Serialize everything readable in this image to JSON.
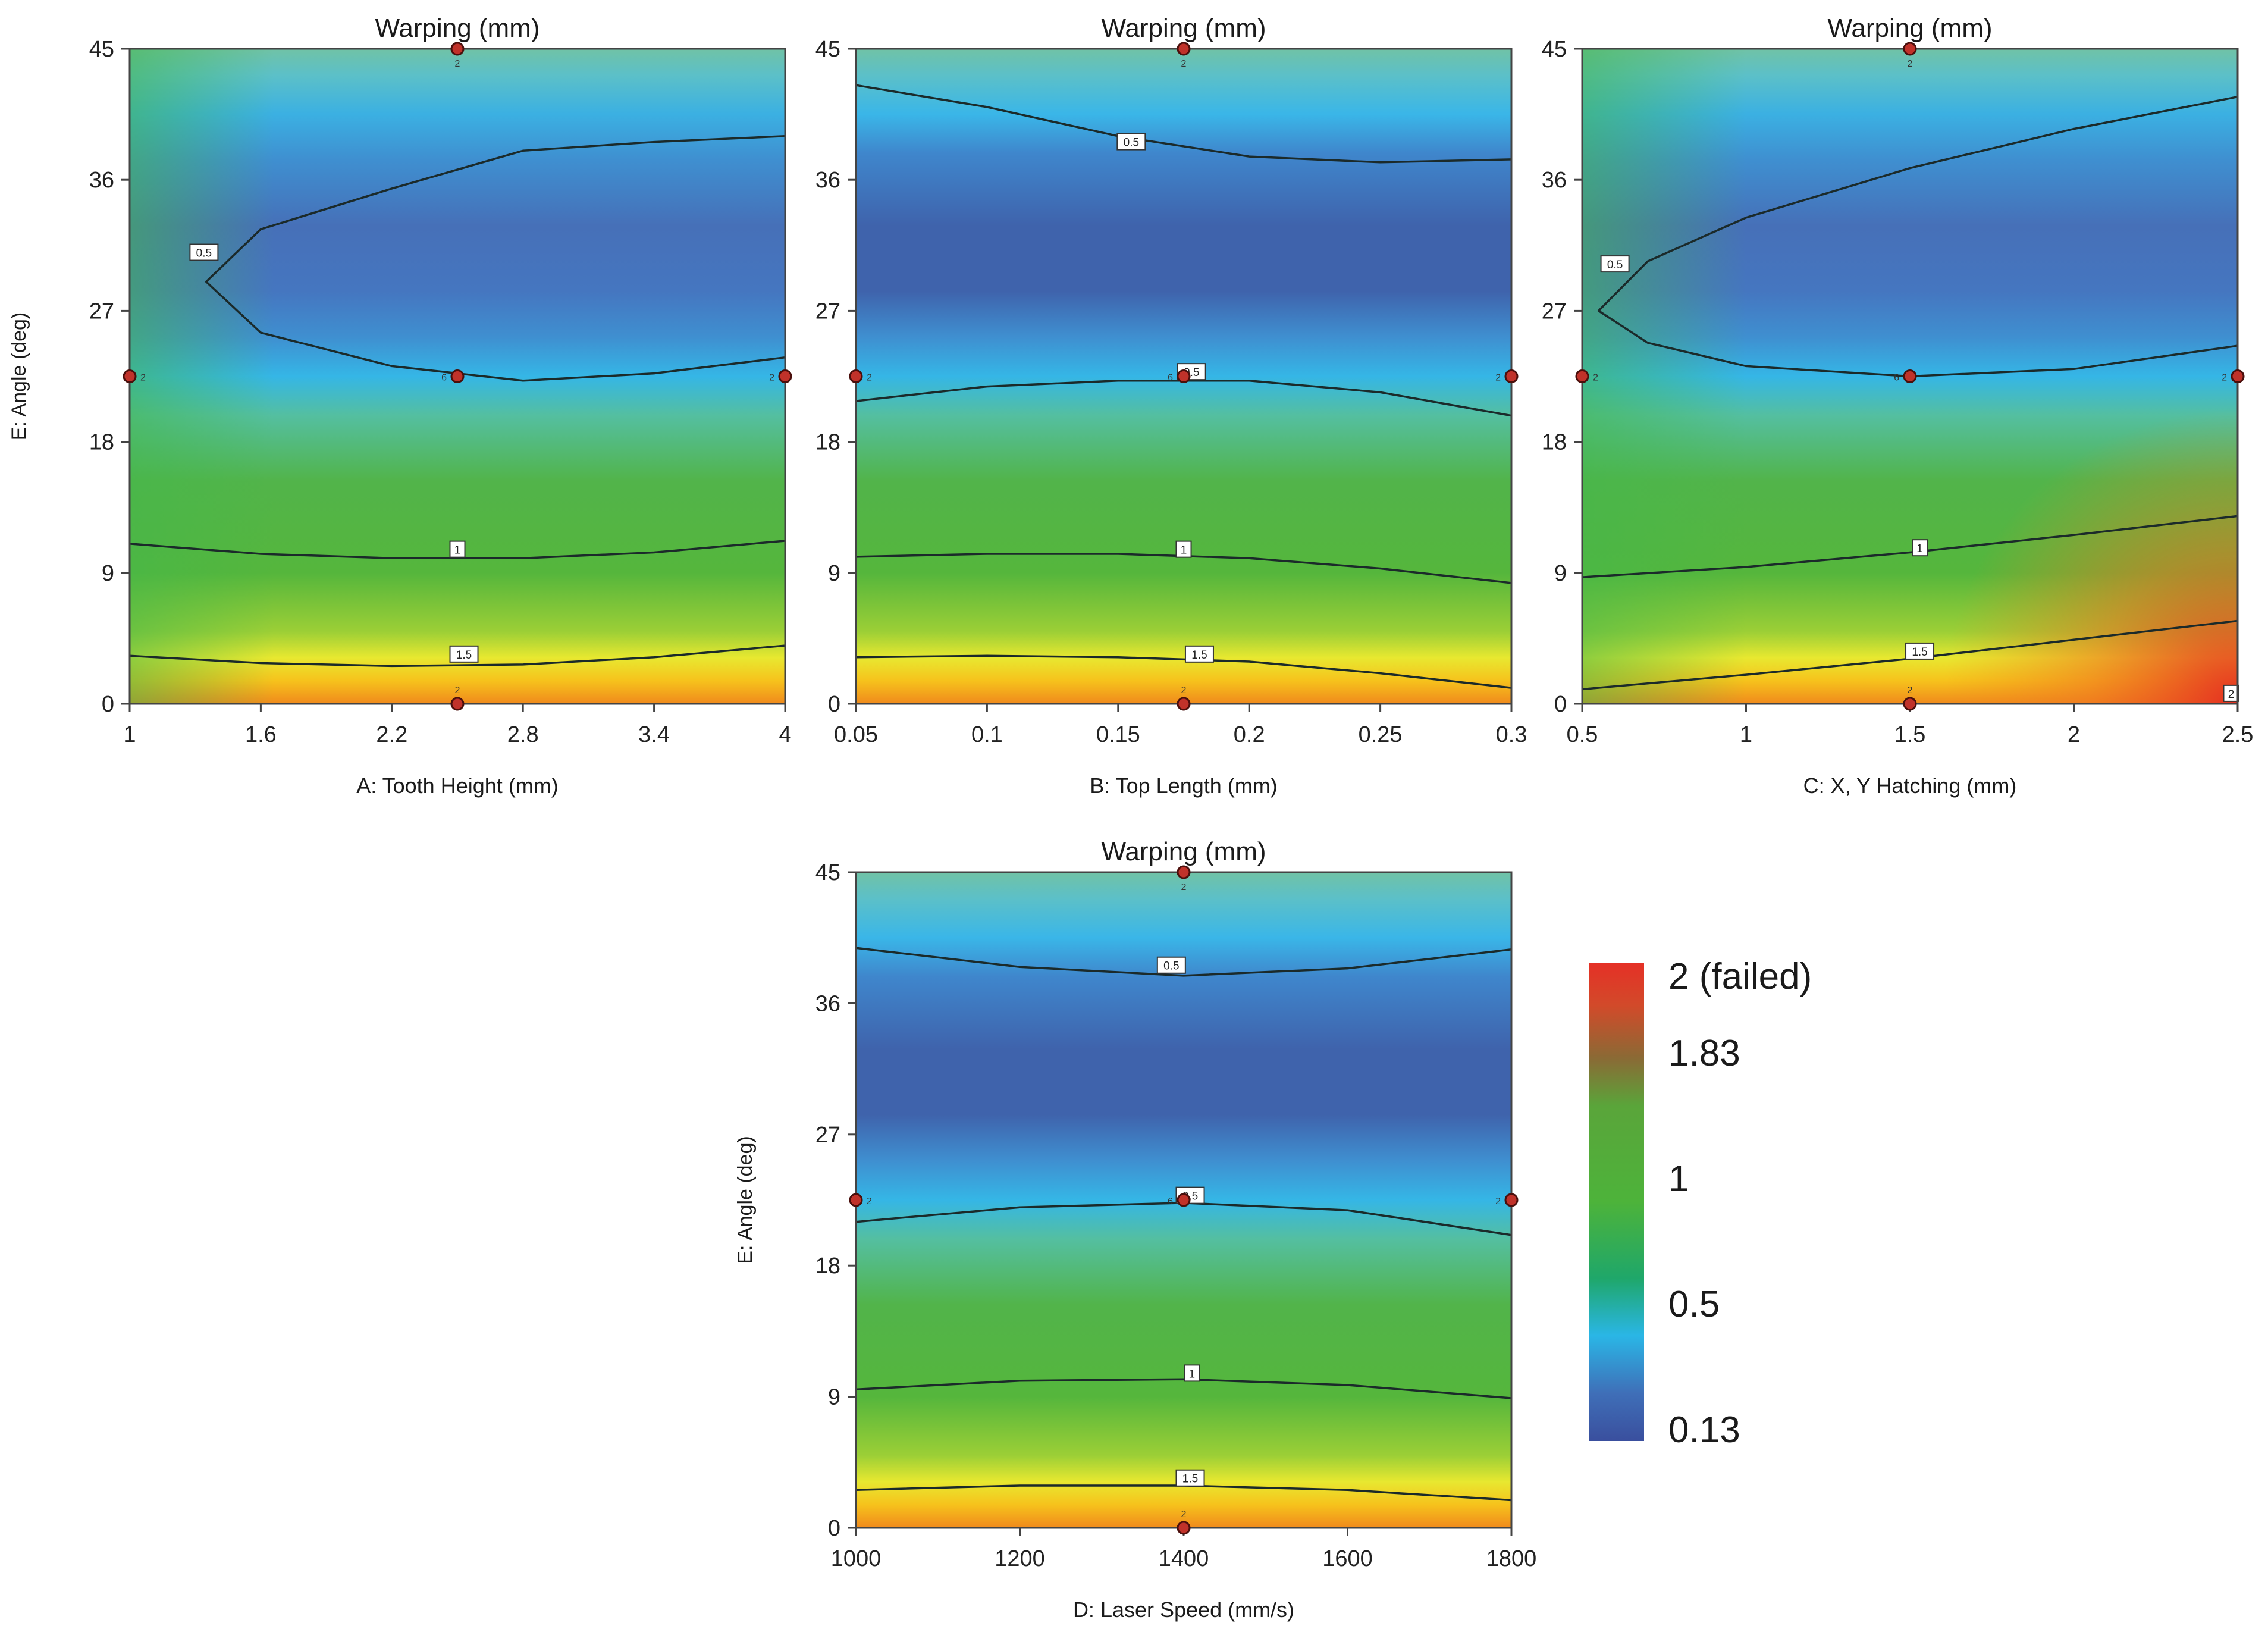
{
  "chart_data": [
    {
      "type": "contour",
      "title": "Warping (mm)",
      "xlabel": "A: Tooth Height (mm)",
      "ylabel": "E: Angle (deg)",
      "xlim": [
        1,
        4
      ],
      "ylim": [
        0,
        45
      ],
      "x_ticks": [
        "1",
        "1.6",
        "2.2",
        "2.8",
        "3.4",
        "4"
      ],
      "y_ticks": [
        "0",
        "9",
        "18",
        "27",
        "36",
        "45"
      ],
      "contour_labels": [
        "0.5",
        "1",
        "1.5"
      ],
      "design_points": [
        {
          "x": 2.5,
          "y": 45,
          "label": "2"
        },
        {
          "x": 1,
          "y": 22.5,
          "label": "2"
        },
        {
          "x": 2.5,
          "y": 22.5,
          "label": "6"
        },
        {
          "x": 4,
          "y": 22.5,
          "label": "2"
        },
        {
          "x": 2.5,
          "y": 0,
          "label": "2"
        }
      ]
    },
    {
      "type": "contour",
      "title": "Warping (mm)",
      "xlabel": "B: Top Length (mm)",
      "ylabel": "",
      "xlim": [
        0.05,
        0.3
      ],
      "ylim": [
        0,
        45
      ],
      "x_ticks": [
        "0.05",
        "0.1",
        "0.15",
        "0.2",
        "0.25",
        "0.3"
      ],
      "y_ticks": [
        "0",
        "9",
        "18",
        "27",
        "36",
        "45"
      ],
      "contour_labels": [
        "0.5",
        "0.5",
        "1",
        "1.5"
      ],
      "design_points": [
        {
          "x": 0.175,
          "y": 45,
          "label": "2"
        },
        {
          "x": 0.05,
          "y": 22.5,
          "label": "2"
        },
        {
          "x": 0.175,
          "y": 22.5,
          "label": "6"
        },
        {
          "x": 0.3,
          "y": 22.5,
          "label": "2"
        },
        {
          "x": 0.175,
          "y": 0,
          "label": "2"
        }
      ]
    },
    {
      "type": "contour",
      "title": "Warping (mm)",
      "xlabel": "C: X, Y Hatching (mm)",
      "ylabel": "",
      "xlim": [
        0.5,
        2.5
      ],
      "ylim": [
        0,
        45
      ],
      "x_ticks": [
        "0.5",
        "1",
        "1.5",
        "2",
        "2.5"
      ],
      "y_ticks": [
        "0",
        "9",
        "18",
        "27",
        "36",
        "45"
      ],
      "contour_labels": [
        "0.5",
        "1",
        "1.5",
        "2"
      ],
      "design_points": [
        {
          "x": 1.5,
          "y": 45,
          "label": "2"
        },
        {
          "x": 0.5,
          "y": 22.5,
          "label": "2"
        },
        {
          "x": 1.5,
          "y": 22.5,
          "label": "6"
        },
        {
          "x": 2.5,
          "y": 22.5,
          "label": "2"
        },
        {
          "x": 1.5,
          "y": 0,
          "label": "2"
        }
      ]
    },
    {
      "type": "contour",
      "title": "Warping (mm)",
      "xlabel": "D: Laser Speed (mm/s)",
      "ylabel": "E: Angle (deg)",
      "xlim": [
        1000,
        1800
      ],
      "ylim": [
        0,
        45
      ],
      "x_ticks": [
        "1000",
        "1200",
        "1400",
        "1600",
        "1800"
      ],
      "y_ticks": [
        "0",
        "9",
        "18",
        "27",
        "36",
        "45"
      ],
      "contour_labels": [
        "0.5",
        "0.5",
        "1",
        "1.5"
      ],
      "design_points": [
        {
          "x": 1400,
          "y": 45,
          "label": "2"
        },
        {
          "x": 1000,
          "y": 22.5,
          "label": "2"
        },
        {
          "x": 1400,
          "y": 22.5,
          "label": "6"
        },
        {
          "x": 1800,
          "y": 22.5,
          "label": "2"
        },
        {
          "x": 1400,
          "y": 0,
          "label": "2"
        }
      ]
    }
  ],
  "legend": {
    "labels": [
      "2 (failed)",
      "1.83",
      "1",
      "0.5",
      "0.13"
    ],
    "colors": [
      "#e53026",
      "#8a6a35",
      "#4db33a",
      "#2ab6e6",
      "#3a4f9e"
    ]
  }
}
